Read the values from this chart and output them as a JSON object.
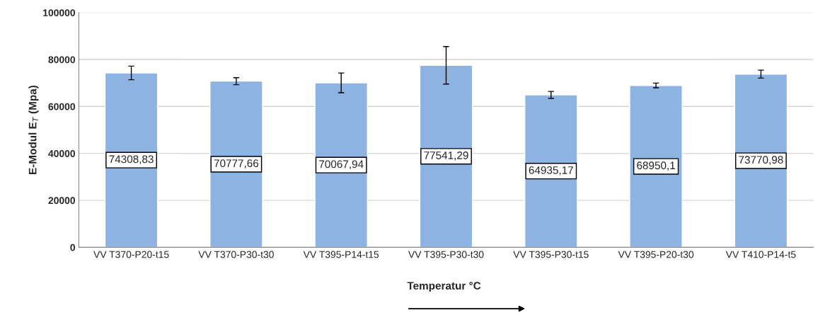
{
  "chart_data": {
    "type": "bar",
    "ylabel": "E-Modul E$_{T}$ (Mpa)",
    "xlabel": "Temperatur °C",
    "categories": [
      "VV T370-P20-t15",
      "VV T370-P30-t30",
      "VV T395-P14-t15",
      "VV T395-P30-t30",
      "VV T395-P30-t15",
      "VV T395-P20-t30",
      "VV T410-P14-t5"
    ],
    "values": [
      74308.83,
      70777.66,
      70067.94,
      77541.29,
      64935.17,
      68950.1,
      73770.98
    ],
    "value_labels": [
      "74308,83",
      "70777,66",
      "70067,94",
      "77541,29",
      "64935,17",
      "68950,1",
      "73770,98"
    ],
    "errors": [
      2900,
      1500,
      4200,
      8000,
      1500,
      1000,
      1700
    ],
    "color": "#8db3e2",
    "ylim": [
      0,
      100000
    ],
    "yticks": [
      0,
      20000,
      40000,
      60000,
      80000,
      100000
    ],
    "grid": "y"
  }
}
